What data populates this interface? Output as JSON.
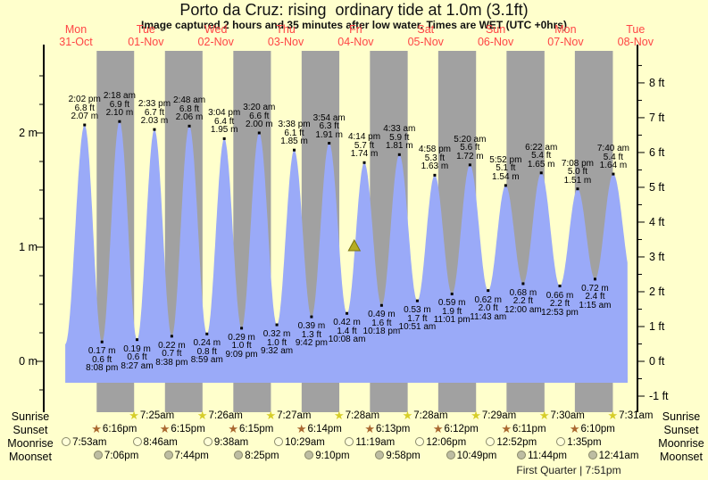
{
  "header": {
    "title": "Porto da Cruz: rising  ordinary tide at 1.0m (3.1ft)",
    "subtitle": "Image captured 2 hours and 35 minutes after low water. Times are WET (UTC +0hrs)"
  },
  "day_axis": [
    {
      "name": "Mon",
      "date": "31-Oct"
    },
    {
      "name": "Tue",
      "date": "01-Nov"
    },
    {
      "name": "Wed",
      "date": "02-Nov"
    },
    {
      "name": "Thu",
      "date": "03-Nov"
    },
    {
      "name": "Fri",
      "date": "04-Nov"
    },
    {
      "name": "Sat",
      "date": "05-Nov"
    },
    {
      "name": "Sun",
      "date": "06-Nov"
    },
    {
      "name": "Mon",
      "date": "07-Nov"
    },
    {
      "name": "Tue",
      "date": "08-Nov"
    }
  ],
  "chart_data": {
    "type": "area",
    "title": "Porto da Cruz: rising  ordinary tide at 1.0m (3.1ft)",
    "y_axis": {
      "left_unit": "m",
      "left_ticks": [
        0,
        1,
        2
      ],
      "left_labels": [
        "0 m",
        "1 m",
        "2 m"
      ],
      "right_unit": "ft",
      "right_labels_top_down": [
        "8 ft",
        "7 ft",
        "6 ft",
        "5 ft",
        "4 ft",
        "3 ft",
        "2 ft",
        "1 ft",
        "0 ft",
        "-1 ft"
      ],
      "right_ticks": [
        8,
        7,
        6,
        5,
        4,
        3,
        2,
        1,
        0,
        -1
      ]
    },
    "tide_events": [
      {
        "kind": "high",
        "day": 0,
        "hour": 14.033,
        "time": "2:02 pm",
        "ft": "6.8 ft",
        "m": "2.07 m",
        "height_m": 2.07
      },
      {
        "kind": "low",
        "day": 0,
        "hour": 20.133,
        "time": "8:08 pm",
        "ft": "0.6 ft",
        "m": "0.17 m",
        "height_m": 0.17
      },
      {
        "kind": "high",
        "day": 1,
        "hour": 2.3,
        "time": "2:18 am",
        "ft": "6.9 ft",
        "m": "2.10 m",
        "height_m": 2.1
      },
      {
        "kind": "low",
        "day": 1,
        "hour": 8.45,
        "time": "8:27 am",
        "ft": "0.6 ft",
        "m": "0.19 m",
        "height_m": 0.19
      },
      {
        "kind": "high",
        "day": 1,
        "hour": 14.55,
        "time": "2:33 pm",
        "ft": "6.7 ft",
        "m": "2.03 m",
        "height_m": 2.03
      },
      {
        "kind": "low",
        "day": 1,
        "hour": 20.633,
        "time": "8:38 pm",
        "ft": "0.7 ft",
        "m": "0.22 m",
        "height_m": 0.22
      },
      {
        "kind": "high",
        "day": 2,
        "hour": 2.8,
        "time": "2:48 am",
        "ft": "6.8 ft",
        "m": "2.06 m",
        "height_m": 2.06
      },
      {
        "kind": "low",
        "day": 2,
        "hour": 8.983,
        "time": "8:59 am",
        "ft": "0.8 ft",
        "m": "0.24 m",
        "height_m": 0.24
      },
      {
        "kind": "high",
        "day": 2,
        "hour": 15.067,
        "time": "3:04 pm",
        "ft": "6.4 ft",
        "m": "1.95 m",
        "height_m": 1.95
      },
      {
        "kind": "low",
        "day": 2,
        "hour": 21.15,
        "time": "9:09 pm",
        "ft": "1.0 ft",
        "m": "0.29 m",
        "height_m": 0.29
      },
      {
        "kind": "high",
        "day": 3,
        "hour": 3.333,
        "time": "3:20 am",
        "ft": "6.6 ft",
        "m": "2.00 m",
        "height_m": 2.0
      },
      {
        "kind": "low",
        "day": 3,
        "hour": 9.533,
        "time": "9:32 am",
        "ft": "1.0 ft",
        "m": "0.32 m",
        "height_m": 0.32
      },
      {
        "kind": "high",
        "day": 3,
        "hour": 15.633,
        "time": "3:38 pm",
        "ft": "6.1 ft",
        "m": "1.85 m",
        "height_m": 1.85
      },
      {
        "kind": "low",
        "day": 3,
        "hour": 21.7,
        "time": "9:42 pm",
        "ft": "1.3 ft",
        "m": "0.39 m",
        "height_m": 0.39
      },
      {
        "kind": "high",
        "day": 4,
        "hour": 3.9,
        "time": "3:54 am",
        "ft": "6.3 ft",
        "m": "1.91 m",
        "height_m": 1.91
      },
      {
        "kind": "low",
        "day": 4,
        "hour": 10.133,
        "time": "10:08 am",
        "ft": "1.4 ft",
        "m": "0.42 m",
        "height_m": 0.42
      },
      {
        "kind": "high",
        "day": 4,
        "hour": 16.233,
        "time": "4:14 pm",
        "ft": "5.7 ft",
        "m": "1.74 m",
        "height_m": 1.74
      },
      {
        "kind": "low",
        "day": 4,
        "hour": 22.3,
        "time": "10:18 pm",
        "ft": "1.6 ft",
        "m": "0.49 m",
        "height_m": 0.49
      },
      {
        "kind": "high",
        "day": 5,
        "hour": 4.55,
        "time": "4:33 am",
        "ft": "5.9 ft",
        "m": "1.81 m",
        "height_m": 1.81
      },
      {
        "kind": "low",
        "day": 5,
        "hour": 10.85,
        "time": "10:51 am",
        "ft": "1.7 ft",
        "m": "0.53 m",
        "height_m": 0.53
      },
      {
        "kind": "high",
        "day": 5,
        "hour": 16.967,
        "time": "4:58 pm",
        "ft": "5.3 ft",
        "m": "1.63 m",
        "height_m": 1.63
      },
      {
        "kind": "low",
        "day": 5,
        "hour": 23.017,
        "time": "11:01 pm",
        "ft": "1.9 ft",
        "m": "0.59 m",
        "height_m": 0.59
      },
      {
        "kind": "high",
        "day": 6,
        "hour": 5.333,
        "time": "5:20 am",
        "ft": "5.6 ft",
        "m": "1.72 m",
        "height_m": 1.72
      },
      {
        "kind": "low",
        "day": 6,
        "hour": 11.717,
        "time": "11:43 am",
        "ft": "2.0 ft",
        "m": "0.62 m",
        "height_m": 0.62
      },
      {
        "kind": "high",
        "day": 6,
        "hour": 17.867,
        "time": "5:52 pm",
        "ft": "5.1 ft",
        "m": "1.54 m",
        "height_m": 1.54
      },
      {
        "kind": "low",
        "day": 7,
        "hour": 0.0,
        "time": "12:00 am",
        "ft": "2.2 ft",
        "m": "0.68 m",
        "height_m": 0.68
      },
      {
        "kind": "high",
        "day": 7,
        "hour": 6.367,
        "time": "6:22 am",
        "ft": "5.4 ft",
        "m": "1.65 m",
        "height_m": 1.65
      },
      {
        "kind": "low",
        "day": 7,
        "hour": 12.883,
        "time": "12:53 pm",
        "ft": "2.2 ft",
        "m": "0.66 m",
        "height_m": 0.66
      },
      {
        "kind": "high",
        "day": 7,
        "hour": 19.133,
        "time": "7:08 pm",
        "ft": "5.0 ft",
        "m": "1.51 m",
        "height_m": 1.51
      },
      {
        "kind": "low",
        "day": 8,
        "hour": 1.25,
        "time": "1:15 am",
        "ft": "2.4 ft",
        "m": "0.72 m",
        "height_m": 0.72
      },
      {
        "kind": "high",
        "day": 8,
        "hour": 7.667,
        "time": "7:40 am",
        "ft": "5.4 ft",
        "m": "1.64 m",
        "height_m": 1.64
      }
    ],
    "current_marker": {
      "day": 4,
      "hour": 12.717,
      "height_m": 1.0
    }
  },
  "astro": {
    "rows": [
      {
        "label": "Sunrise",
        "icon": "sunrise-star",
        "events": [
          {
            "time": "7:25am",
            "day": 1,
            "hour": 7.417
          },
          {
            "time": "7:26am",
            "day": 2,
            "hour": 7.433
          },
          {
            "time": "7:27am",
            "day": 3,
            "hour": 7.45
          },
          {
            "time": "7:28am",
            "day": 4,
            "hour": 7.467
          },
          {
            "time": "7:28am",
            "day": 5,
            "hour": 7.467
          },
          {
            "time": "7:29am",
            "day": 6,
            "hour": 7.483
          },
          {
            "time": "7:30am",
            "day": 7,
            "hour": 7.5
          },
          {
            "time": "7:31am",
            "day": 8,
            "hour": 7.517
          }
        ]
      },
      {
        "label": "Sunset",
        "icon": "sunset-star",
        "events": [
          {
            "time": "6:16pm",
            "day": 0,
            "hour": 18.267
          },
          {
            "time": "6:15pm",
            "day": 1,
            "hour": 18.25
          },
          {
            "time": "6:15pm",
            "day": 2,
            "hour": 18.25
          },
          {
            "time": "6:14pm",
            "day": 3,
            "hour": 18.233
          },
          {
            "time": "6:13pm",
            "day": 4,
            "hour": 18.217
          },
          {
            "time": "6:12pm",
            "day": 5,
            "hour": 18.2
          },
          {
            "time": "6:11pm",
            "day": 6,
            "hour": 18.183
          },
          {
            "time": "6:10pm",
            "day": 7,
            "hour": 18.167
          }
        ]
      },
      {
        "label": "Moonrise",
        "icon": "moonrise-circle",
        "events": [
          {
            "time": "7:53am",
            "day": 0,
            "hour": 7.883
          },
          {
            "time": "8:46am",
            "day": 1,
            "hour": 8.767
          },
          {
            "time": "9:38am",
            "day": 2,
            "hour": 9.633
          },
          {
            "time": "10:29am",
            "day": 3,
            "hour": 10.483
          },
          {
            "time": "11:19am",
            "day": 4,
            "hour": 11.317
          },
          {
            "time": "12:06pm",
            "day": 5,
            "hour": 12.1
          },
          {
            "time": "12:52pm",
            "day": 6,
            "hour": 12.867
          },
          {
            "time": "1:35pm",
            "day": 7,
            "hour": 13.583
          }
        ]
      },
      {
        "label": "Moonset",
        "icon": "moonset-circle",
        "events": [
          {
            "time": "7:06pm",
            "day": 0,
            "hour": 19.1
          },
          {
            "time": "7:44pm",
            "day": 1,
            "hour": 19.733
          },
          {
            "time": "8:25pm",
            "day": 2,
            "hour": 20.417
          },
          {
            "time": "9:10pm",
            "day": 3,
            "hour": 21.167
          },
          {
            "time": "9:58pm",
            "day": 4,
            "hour": 21.967
          },
          {
            "time": "10:49pm",
            "day": 5,
            "hour": 22.817
          },
          {
            "time": "11:44pm",
            "day": 6,
            "hour": 23.733
          },
          {
            "time": "12:41am",
            "day": 8,
            "hour": 0.683
          }
        ]
      }
    ],
    "footnote": "First Quarter | 7:51pm"
  },
  "colors": {
    "background": "#FFFFCC",
    "night_band": "#A1A1A1",
    "tide_fill": "#9AAAF8",
    "date_red": "#FF4545",
    "sunrise_star": "#D6CE29",
    "sunset_star": "#A9672F",
    "moonrise_fill": "#FFFFDA",
    "moonset_fill": "#BDBDA2",
    "marker_fill": "#B6AD23",
    "marker_stroke": "#7A7410",
    "axis": "#000000"
  }
}
